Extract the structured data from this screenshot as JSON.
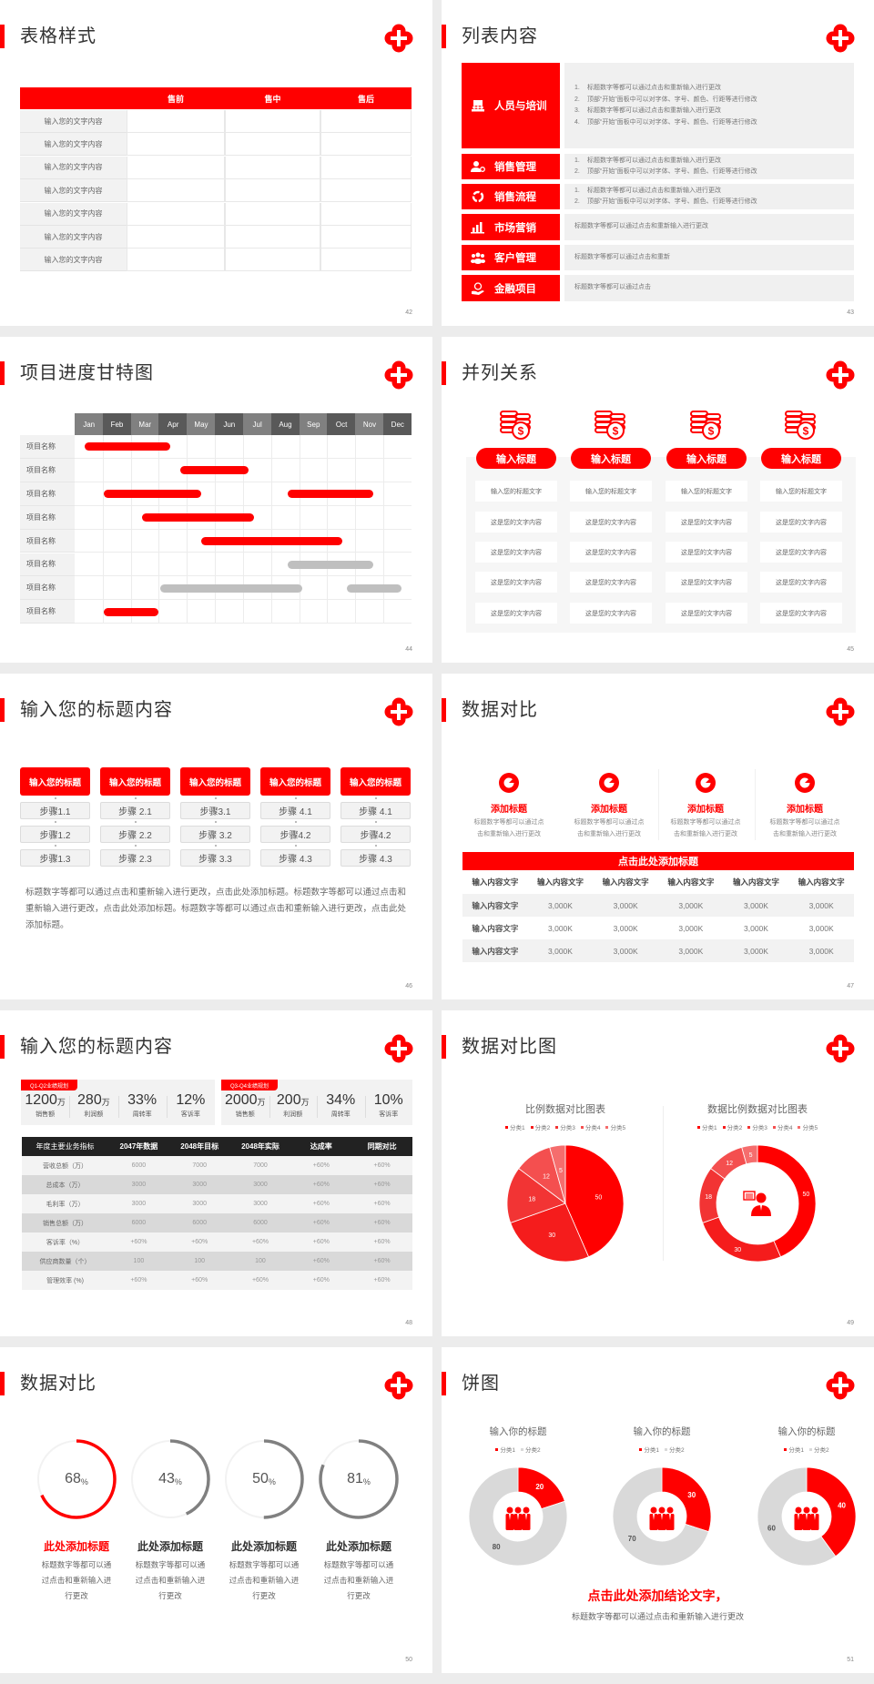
{
  "theme": {
    "accent": "#ff0000",
    "gray_bar": "#bfbfbf",
    "dark": "#222222",
    "panel": "#f2f2f2"
  },
  "logo": {
    "icon": "red-cross-logo"
  },
  "slides": [
    {
      "type": "table",
      "page": "42",
      "title": "表格样式",
      "headers": [
        "",
        "售前",
        "售中",
        "售后"
      ],
      "rows": [
        "输入您的文字内容",
        "输入您的文字内容",
        "输入您的文字内容",
        "输入您的文字内容",
        "输入您的文字内容",
        "输入您的文字内容",
        "输入您的文字内容"
      ]
    },
    {
      "type": "list",
      "page": "43",
      "title": "列表内容",
      "items": [
        {
          "label": "人员与培训",
          "icon": "training-icon",
          "numbered": true,
          "lines": [
            "标题数字等都可以通过点击和重新输入进行更改",
            "顶部“开始”面板中可以对字体、字号、颜色、行距等进行修改",
            "标题数字等都可以通过点击和重新输入进行更改",
            "顶部“开始”面板中可以对字体、字号、颜色、行距等进行修改"
          ]
        },
        {
          "label": "销售管理",
          "icon": "manager-gear-icon",
          "numbered": true,
          "lines": [
            "标题数字等都可以通过点击和重新输入进行更改",
            "顶部“开始”面板中可以对字体、字号、颜色、行距等进行修改"
          ]
        },
        {
          "label": "销售流程",
          "icon": "cycle-icon",
          "numbered": true,
          "lines": [
            "标题数字等都可以通过点击和重新输入进行更改",
            "顶部“开始”面板中可以对字体、字号、颜色、行距等进行修改"
          ]
        },
        {
          "label": "市场营销",
          "icon": "bar-chart-icon",
          "numbered": false,
          "lines": [
            "标题数字等都可以通过点击和重新输入进行更改"
          ]
        },
        {
          "label": "客户管理",
          "icon": "users-icon",
          "numbered": false,
          "lines": [
            "标题数字等都可以通过点击和重新"
          ]
        },
        {
          "label": "金融项目",
          "icon": "finance-hand-icon",
          "numbered": false,
          "lines": [
            "标题数字等都可以通过点击"
          ]
        }
      ]
    },
    {
      "type": "gantt",
      "page": "44",
      "title": "项目进度甘特图",
      "months": [
        "Jan",
        "Feb",
        "Mar",
        "Apr",
        "May",
        "Jun",
        "Jul",
        "Aug",
        "Sep",
        "Oct",
        "Nov",
        "Dec"
      ],
      "rows": [
        "项目名称",
        "项目名称",
        "项目名称",
        "项目名称",
        "项目名称",
        "项目名称",
        "项目名称",
        "项目名称"
      ],
      "bars": [
        {
          "row": 0,
          "start": 0.35,
          "end": 3.4,
          "status": "red"
        },
        {
          "row": 1,
          "start": 3.75,
          "end": 6.2,
          "status": "red"
        },
        {
          "row": 2,
          "start": 1.05,
          "end": 4.5,
          "status": "red"
        },
        {
          "row": 2,
          "start": 7.6,
          "end": 10.65,
          "status": "red"
        },
        {
          "row": 3,
          "start": 2.4,
          "end": 6.4,
          "status": "red"
        },
        {
          "row": 4,
          "start": 4.5,
          "end": 9.55,
          "status": "red"
        },
        {
          "row": 5,
          "start": 7.6,
          "end": 10.65,
          "status": "gray"
        },
        {
          "row": 6,
          "start": 3.05,
          "end": 8.1,
          "status": "gray"
        },
        {
          "row": 6,
          "start": 9.7,
          "end": 11.65,
          "status": "gray"
        },
        {
          "row": 7,
          "start": 1.05,
          "end": 3.0,
          "status": "red"
        }
      ]
    },
    {
      "type": "parallel",
      "page": "45",
      "title": "并列关系",
      "columns": [
        {
          "icon": "coins-dollar-icon",
          "button": "输入标题",
          "cells": [
            "输入您的标题文字",
            "这是您的文字内容",
            "这是您的文字内容",
            "这是您的文字内容",
            "这是您的文字内容"
          ]
        },
        {
          "icon": "coins-dollar-icon",
          "button": "输入标题",
          "cells": [
            "输入您的标题文字",
            "这是您的文字内容",
            "这是您的文字内容",
            "这是您的文字内容",
            "这是您的文字内容"
          ]
        },
        {
          "icon": "coins-dollar-icon",
          "button": "输入标题",
          "cells": [
            "输入您的标题文字",
            "这是您的文字内容",
            "这是您的文字内容",
            "这是您的文字内容",
            "这是您的文字内容"
          ]
        },
        {
          "icon": "coins-dollar-icon",
          "button": "输入标题",
          "cells": [
            "输入您的标题文字",
            "这是您的文字内容",
            "这是您的文字内容",
            "这是您的文字内容",
            "这是您的文字内容"
          ]
        }
      ]
    },
    {
      "type": "steps",
      "page": "46",
      "title": "输入您的标题内容",
      "columns": [
        {
          "header": "输入您的标题",
          "steps": [
            "步骤1.1",
            "步骤1.2",
            "步骤1.3"
          ]
        },
        {
          "header": "输入您的标题",
          "steps": [
            "步骤 2.1",
            "步骤 2.2",
            "步骤 2.3"
          ]
        },
        {
          "header": "输入您的标题",
          "steps": [
            "步骤3.1",
            "步骤 3.2",
            "步骤 3.3"
          ]
        },
        {
          "header": "输入您的标题",
          "steps": [
            "步骤 4.1",
            "步骤4.2",
            "步骤 4.3"
          ]
        },
        {
          "header": "输入您的标题",
          "steps": [
            "步骤 4.1",
            "步骤4.2",
            "步骤 4.3"
          ]
        }
      ],
      "paragraph": "标题数字等都可以通过点击和重新输入进行更改，点击此处添加标题。标题数字等都可以通过点击和重新输入进行更改，点击此处添加标题。标题数字等都可以通过点击和重新输入进行更改，点击此处添加标题。"
    },
    {
      "type": "compare",
      "page": "47",
      "title": "数据对比",
      "features": [
        {
          "icon": "pie-icon",
          "title": "添加标题",
          "lines": [
            "标题数字等都可以通过点",
            "击和重新输入进行更改"
          ]
        },
        {
          "icon": "pie-icon",
          "title": "添加标题",
          "lines": [
            "标题数字等都可以通过点",
            "击和重新输入进行更改"
          ]
        },
        {
          "icon": "pie-icon",
          "title": "添加标题",
          "lines": [
            "标题数字等都可以通过点",
            "击和重新输入进行更改"
          ]
        },
        {
          "icon": "pie-icon",
          "title": "添加标题",
          "lines": [
            "标题数字等都可以通过点",
            "击和重新输入进行更改"
          ]
        }
      ],
      "bar_title": "点击此处添加标题",
      "table_header": [
        "输入内容文字",
        "输入内容文字",
        "输入内容文字",
        "输入内容文字",
        "输入内容文字",
        "输入内容文字"
      ],
      "table_rows": [
        [
          "输入内容文字",
          "3,000K",
          "3,000K",
          "3,000K",
          "3,000K",
          "3,000K"
        ],
        [
          "输入内容文字",
          "3,000K",
          "3,000K",
          "3,000K",
          "3,000K",
          "3,000K"
        ],
        [
          "输入内容文字",
          "3,000K",
          "3,000K",
          "3,000K",
          "3,000K",
          "3,000K"
        ]
      ]
    },
    {
      "type": "kpi",
      "page": "48",
      "title": "输入您的标题内容",
      "groups": [
        {
          "tag": "Q1-Q2业绩规划",
          "kpis": [
            {
              "value": "1200",
              "unit": "万",
              "label": "销售额"
            },
            {
              "value": "280",
              "unit": "万",
              "label": "利润额"
            },
            {
              "value": "33%",
              "unit": "",
              "label": "周转率"
            },
            {
              "value": "12%",
              "unit": "",
              "label": "客诉率"
            }
          ]
        },
        {
          "tag": "Q3-Q4业绩规划",
          "kpis": [
            {
              "value": "2000",
              "unit": "万",
              "label": "销售额"
            },
            {
              "value": "200",
              "unit": "万",
              "label": "利润额"
            },
            {
              "value": "34%",
              "unit": "",
              "label": "周转率"
            },
            {
              "value": "10%",
              "unit": "",
              "label": "客诉率"
            }
          ]
        }
      ],
      "table_header": [
        "年度主要业务指标",
        "2047年数据",
        "2048年目标",
        "2048年实际",
        "达成率",
        "同期对比"
      ],
      "table_rows": [
        [
          "营收总额（万）",
          "6000",
          "7000",
          "7000",
          "+60%",
          "+60%"
        ],
        [
          "总成本（万）",
          "3000",
          "3000",
          "3000",
          "+60%",
          "+60%"
        ],
        [
          "毛利率（万）",
          "3000",
          "3000",
          "3000",
          "+60%",
          "+60%"
        ],
        [
          "销售总额（万）",
          "6000",
          "6000",
          "6000",
          "+60%",
          "+60%"
        ],
        [
          "客诉率（%）",
          "+60%",
          "+60%",
          "+60%",
          "+60%",
          "+60%"
        ],
        [
          "供应商数量（个）",
          "100",
          "100",
          "100",
          "+60%",
          "+60%"
        ],
        [
          "管理效率 (%)",
          "+60%",
          "+60%",
          "+60%",
          "+60%",
          "+60%"
        ]
      ]
    },
    {
      "type": "pies",
      "page": "49",
      "title": "数据对比图",
      "charts": [
        0,
        1
      ],
      "center_icon": "consultant-icon"
    },
    {
      "type": "rings",
      "page": "50",
      "title": "数据对比",
      "items": [
        {
          "value": 68,
          "unit": "%",
          "title": "此处添加标题",
          "lines": [
            "标题数字等都可以通",
            "过点击和重新输入进",
            "行更改"
          ],
          "highlight": true
        },
        {
          "value": 43,
          "unit": "%",
          "title": "此处添加标题",
          "lines": [
            "标题数字等都可以通",
            "过点击和重新输入进",
            "行更改"
          ],
          "highlight": false
        },
        {
          "value": 50,
          "unit": "%",
          "title": "此处添加标题",
          "lines": [
            "标题数字等都可以通",
            "过点击和重新输入进",
            "行更改"
          ],
          "highlight": false
        },
        {
          "value": 81,
          "unit": "%",
          "title": "此处添加标题",
          "lines": [
            "标题数字等都可以通",
            "过点击和重新输入进",
            "行更改"
          ],
          "highlight": false
        }
      ]
    },
    {
      "type": "donuts",
      "page": "51",
      "title": "饼图",
      "charts": [
        2,
        3,
        4
      ],
      "center_icon": "team-icon",
      "conclusion": "点击此处添加结论文字，",
      "subtitle": "标题数字等都可以通过点击和重新输入进行更改"
    }
  ],
  "chart_data": [
    {
      "type": "pie",
      "title": "比例数据对比图表",
      "categories": [
        "分类1",
        "分类2",
        "分类3",
        "分类4",
        "分类5"
      ],
      "values": [
        50,
        30,
        18,
        12,
        5
      ],
      "colors": [
        "#ff0000",
        "#f51c1c",
        "#f23434",
        "#f44f4f",
        "#f56d6d"
      ],
      "legend": "top"
    },
    {
      "type": "donut",
      "title": "数据比例数据对比图表",
      "categories": [
        "分类1",
        "分类2",
        "分类3",
        "分类4",
        "分类5"
      ],
      "values": [
        50,
        30,
        18,
        12,
        5
      ],
      "colors": [
        "#ff0000",
        "#f51c1c",
        "#f23434",
        "#f44f4f",
        "#f56d6d"
      ],
      "legend": "top"
    },
    {
      "type": "donut",
      "title": "输入你的标题",
      "categories": [
        "分类1",
        "分类2"
      ],
      "values": [
        20,
        80
      ],
      "colors": [
        "#ff0000",
        "#d9d9d9"
      ],
      "legend": "top"
    },
    {
      "type": "donut",
      "title": "输入你的标题",
      "categories": [
        "分类1",
        "分类2"
      ],
      "values": [
        30,
        70
      ],
      "colors": [
        "#ff0000",
        "#d9d9d9"
      ],
      "legend": "top"
    },
    {
      "type": "donut",
      "title": "输入你的标题",
      "categories": [
        "分类1",
        "分类2"
      ],
      "values": [
        40,
        60
      ],
      "colors": [
        "#ff0000",
        "#d9d9d9"
      ],
      "legend": "top"
    }
  ]
}
